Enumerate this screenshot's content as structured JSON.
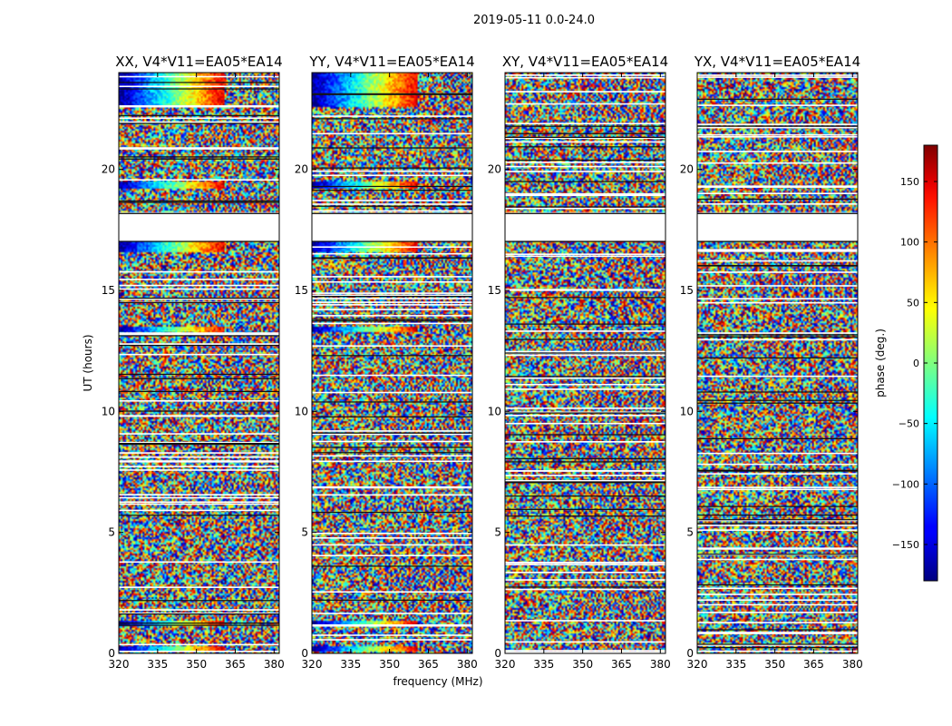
{
  "chart_data": {
    "type": "heatmap",
    "suptitle": "2019-05-11 0.0-24.0",
    "xlabel": "frequency (MHz)",
    "ylabel": "UT (hours)",
    "xlim": [
      320,
      382
    ],
    "ylim": [
      0,
      24
    ],
    "xticks": [
      320,
      335,
      350,
      365,
      380
    ],
    "yticks": [
      0,
      5,
      10,
      15,
      20
    ],
    "panels": [
      {
        "title": "XX, V4*V11=EA05*EA14",
        "polarization": "XX",
        "coherent_phase": true
      },
      {
        "title": "YY, V4*V11=EA05*EA14",
        "polarization": "YY",
        "coherent_phase": true
      },
      {
        "title": "XY, V4*V11=EA05*EA14",
        "polarization": "XY",
        "coherent_phase": false
      },
      {
        "title": "YX, V4*V11=EA05*EA14",
        "polarization": "YX",
        "coherent_phase": false
      }
    ],
    "data_gap_hours": [
      17.0,
      18.2
    ],
    "coherent_bands_hours": [
      [
        0.05,
        0.3,
        "blue-red"
      ],
      [
        1.15,
        1.35,
        "blue-red"
      ],
      [
        13.3,
        13.5,
        "blue-red"
      ],
      [
        16.6,
        17.0,
        "blue-red"
      ],
      [
        19.2,
        19.5,
        "blue-red"
      ],
      [
        22.6,
        24.0,
        "blue-red"
      ]
    ],
    "colorbar": {
      "label": "phase (deg.)",
      "range": [
        -180,
        180
      ],
      "ticks": [
        -150,
        -100,
        -50,
        0,
        50,
        100,
        150
      ],
      "tick_labels": [
        "−150",
        "−100",
        "−50",
        "0",
        "50",
        "100",
        "150"
      ],
      "colormap": "jet"
    }
  }
}
